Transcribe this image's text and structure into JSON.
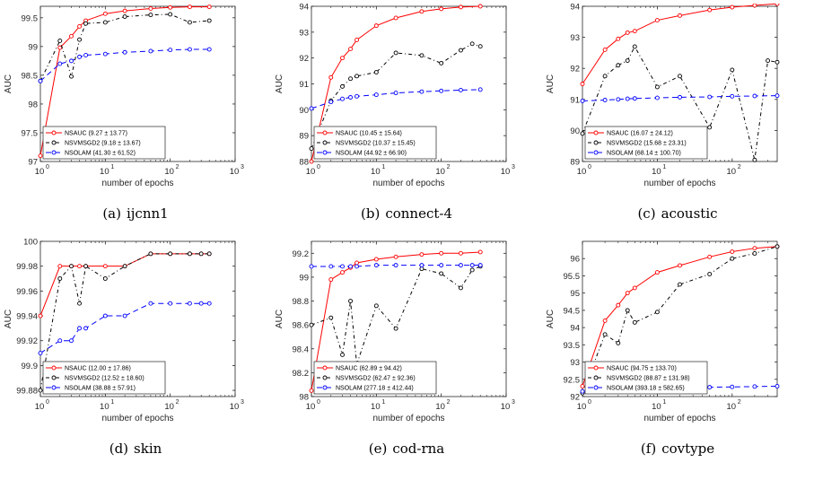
{
  "colors": {
    "nsauc": "#ff0000",
    "nsvmsgd2": "#000000",
    "nsolam": "#0000ff"
  },
  "chart_data": [
    {
      "type": "line",
      "caption_letter": "(a)",
      "caption": "ijcnn1",
      "xlabel": "number of epochs",
      "ylabel": "AUC",
      "xscale": "log",
      "xlim": [
        1,
        1000
      ],
      "ylim": [
        97,
        99.7
      ],
      "yticks": [
        97,
        97.5,
        98,
        98.5,
        99,
        99.5
      ],
      "ytick_labels": [
        "97",
        "97.5",
        "98",
        "98.5",
        "99",
        "99.5"
      ],
      "xticks": [
        1,
        10,
        100,
        1000
      ],
      "xtick_labels": [
        "10",
        "10",
        "10",
        "10"
      ],
      "xtick_exps": [
        "0",
        "1",
        "2",
        "3"
      ],
      "legend_position": "bottom-left",
      "series": [
        {
          "name": "NSAUC (9.27 ± 13.77)",
          "x": [
            1,
            2,
            3,
            4,
            5,
            10,
            20,
            50,
            100,
            200,
            400
          ],
          "y": [
            97.1,
            98.98,
            99.18,
            99.35,
            99.45,
            99.57,
            99.62,
            99.66,
            99.68,
            99.69,
            99.69
          ]
        },
        {
          "name": "NSVMSGD2 (9.18 ± 13.67)",
          "x": [
            1,
            2,
            3,
            4,
            5,
            10,
            20,
            50,
            100,
            200,
            400
          ],
          "y": [
            98.4,
            99.1,
            98.48,
            99.12,
            99.4,
            99.42,
            99.52,
            99.55,
            99.56,
            99.42,
            99.45
          ]
        },
        {
          "name": "NSOLAM (41.30 ± 61.52)",
          "x": [
            1,
            2,
            3,
            4,
            5,
            10,
            20,
            50,
            100,
            200,
            400
          ],
          "y": [
            98.4,
            98.7,
            98.75,
            98.82,
            98.85,
            98.87,
            98.9,
            98.92,
            98.94,
            98.95,
            98.95
          ]
        }
      ]
    },
    {
      "type": "line",
      "caption_letter": "(b)",
      "caption": "connect-4",
      "xlabel": "number of epochs",
      "ylabel": "AUC",
      "xscale": "log",
      "xlim": [
        1,
        1000
      ],
      "ylim": [
        88,
        94
      ],
      "yticks": [
        88,
        89,
        90,
        91,
        92,
        93,
        94
      ],
      "ytick_labels": [
        "88",
        "89",
        "90",
        "91",
        "92",
        "93",
        "94"
      ],
      "xticks": [
        1,
        10,
        100,
        1000
      ],
      "xtick_labels": [
        "10",
        "10",
        "10",
        "10"
      ],
      "xtick_exps": [
        "0",
        "1",
        "2",
        "3"
      ],
      "legend_position": "bottom-left",
      "series": [
        {
          "name": "NSAUC (10.45 ± 15.64)",
          "x": [
            1,
            2,
            3,
            4,
            5,
            10,
            20,
            50,
            100,
            200,
            400
          ],
          "y": [
            88.0,
            91.25,
            92.0,
            92.35,
            92.7,
            93.25,
            93.55,
            93.8,
            93.9,
            93.97,
            94.0
          ]
        },
        {
          "name": "NSVMSGD2 (10.37 ± 15.45)",
          "x": [
            1,
            2,
            3,
            4,
            5,
            10,
            20,
            50,
            100,
            200,
            300,
            400
          ],
          "y": [
            88.5,
            90.35,
            90.9,
            91.2,
            91.3,
            91.45,
            92.2,
            92.1,
            91.8,
            92.3,
            92.55,
            92.45
          ]
        },
        {
          "name": "NSOLAM (44.92 ± 66.90)",
          "x": [
            1,
            2,
            3,
            4,
            5,
            10,
            20,
            50,
            100,
            200,
            400
          ],
          "y": [
            90.05,
            90.3,
            90.42,
            90.48,
            90.52,
            90.58,
            90.65,
            90.7,
            90.73,
            90.76,
            90.78
          ]
        }
      ]
    },
    {
      "type": "line",
      "caption_letter": "(c)",
      "caption": "acoustic",
      "xlabel": "number of epochs",
      "ylabel": "AUC",
      "xscale": "log",
      "xlim": [
        1,
        400
      ],
      "ylim": [
        89,
        94
      ],
      "yticks": [
        89,
        90,
        91,
        92,
        93,
        94
      ],
      "ytick_labels": [
        "89",
        "90",
        "91",
        "92",
        "93",
        "94"
      ],
      "xticks": [
        1,
        10,
        100
      ],
      "xtick_labels": [
        "10",
        "10",
        "10"
      ],
      "xtick_exps": [
        "0",
        "1",
        "2"
      ],
      "legend_position": "bottom-left",
      "series": [
        {
          "name": "NSAUC (16.07 ± 24.12)",
          "x": [
            1,
            2,
            3,
            4,
            5,
            10,
            20,
            50,
            100,
            200,
            400
          ],
          "y": [
            91.5,
            92.6,
            92.95,
            93.15,
            93.2,
            93.55,
            93.7,
            93.88,
            93.97,
            94.03,
            94.08
          ]
        },
        {
          "name": "NSVMSGD2 (15.68 ± 23.31)",
          "x": [
            1,
            2,
            3,
            4,
            5,
            10,
            20,
            50,
            100,
            200,
            300,
            400
          ],
          "y": [
            89.9,
            91.75,
            92.1,
            92.25,
            92.7,
            91.4,
            91.75,
            90.1,
            91.95,
            89.05,
            92.25,
            92.2
          ]
        },
        {
          "name": "NSOLAM (68.14 ± 100.70)",
          "x": [
            1,
            2,
            3,
            4,
            5,
            10,
            20,
            50,
            100,
            200,
            400
          ],
          "y": [
            90.95,
            90.98,
            91.0,
            91.02,
            91.03,
            91.05,
            91.07,
            91.08,
            91.1,
            91.11,
            91.12
          ]
        }
      ]
    },
    {
      "type": "line",
      "caption_letter": "(d)",
      "caption": "skin",
      "xlabel": "number of epochs",
      "ylabel": "AUC",
      "xscale": "log",
      "xlim": [
        1,
        1000
      ],
      "ylim": [
        99.875,
        100
      ],
      "yticks": [
        99.88,
        99.9,
        99.92,
        99.94,
        99.96,
        99.98,
        100
      ],
      "ytick_labels": [
        "99.88",
        "99.9",
        "99.92",
        "99.94",
        "99.96",
        "99.98",
        "100"
      ],
      "xticks": [
        1,
        10,
        100,
        1000
      ],
      "xtick_labels": [
        "10",
        "10",
        "10",
        "10"
      ],
      "xtick_exps": [
        "0",
        "1",
        "2",
        "3"
      ],
      "legend_position": "bottom-left",
      "series": [
        {
          "name": "NSAUC (12.00 ± 17.86)",
          "x": [
            1,
            2,
            3,
            4,
            5,
            10,
            20,
            50,
            100,
            200,
            300,
            400
          ],
          "y": [
            99.94,
            99.98,
            99.98,
            99.98,
            99.98,
            99.98,
            99.98,
            99.99,
            99.99,
            99.99,
            99.99,
            99.99
          ]
        },
        {
          "name": "NSVMSGD2 (12.52 ± 18.60)",
          "x": [
            1,
            2,
            3,
            4,
            5,
            10,
            20,
            50,
            100,
            200,
            300,
            400
          ],
          "y": [
            99.88,
            99.97,
            99.98,
            99.95,
            99.98,
            99.97,
            99.98,
            99.99,
            99.99,
            99.99,
            99.99,
            99.99
          ]
        },
        {
          "name": "NSOLAM (38.88 ± 57.91)",
          "x": [
            1,
            2,
            3,
            4,
            5,
            10,
            20,
            50,
            100,
            200,
            300,
            400
          ],
          "y": [
            99.91,
            99.92,
            99.92,
            99.93,
            99.93,
            99.94,
            99.94,
            99.95,
            99.95,
            99.95,
            99.95,
            99.95
          ]
        }
      ]
    },
    {
      "type": "line",
      "caption_letter": "(e)",
      "caption": "cod-rna",
      "xlabel": "number of epochs",
      "ylabel": "AUC",
      "xscale": "log",
      "xlim": [
        1,
        1000
      ],
      "ylim": [
        98,
        99.3
      ],
      "yticks": [
        98,
        98.2,
        98.4,
        98.6,
        98.8,
        99,
        99.2
      ],
      "ytick_labels": [
        "98",
        "98.2",
        "98.4",
        "98.6",
        "98.8",
        "99",
        "99.2"
      ],
      "xticks": [
        1,
        10,
        100,
        1000
      ],
      "xtick_labels": [
        "10",
        "10",
        "10",
        "10"
      ],
      "xtick_exps": [
        "0",
        "1",
        "2",
        "3"
      ],
      "legend_position": "bottom-left",
      "series": [
        {
          "name": "NSAUC (62.89 ± 94.42)",
          "x": [
            1,
            2,
            3,
            4,
            5,
            10,
            20,
            50,
            100,
            200,
            400
          ],
          "y": [
            98.05,
            98.98,
            99.04,
            99.08,
            99.12,
            99.15,
            99.17,
            99.19,
            99.2,
            99.2,
            99.21
          ]
        },
        {
          "name": "NSVMSGD2 (62.47 ± 92.36)",
          "x": [
            1,
            2,
            3,
            4,
            5,
            10,
            20,
            50,
            100,
            200,
            300,
            400
          ],
          "y": [
            98.6,
            98.66,
            98.35,
            98.8,
            98.27,
            98.76,
            98.57,
            99.07,
            99.03,
            98.91,
            99.06,
            99.09
          ]
        },
        {
          "name": "NSOLAM (277.18 ± 412.44)",
          "x": [
            1,
            2,
            3,
            4,
            5,
            10,
            20,
            50,
            100,
            200,
            300,
            400
          ],
          "y": [
            99.09,
            99.09,
            99.09,
            99.09,
            99.09,
            99.1,
            99.1,
            99.1,
            99.1,
            99.1,
            99.1,
            99.1
          ]
        }
      ]
    },
    {
      "type": "line",
      "caption_letter": "(f)",
      "caption": "covtype",
      "xlabel": "number of epochs",
      "ylabel": "AUC",
      "xscale": "log",
      "xlim": [
        1,
        400
      ],
      "ylim": [
        92,
        96.5
      ],
      "yticks": [
        92,
        92.5,
        93,
        93.5,
        94,
        94.5,
        95,
        95.5,
        96
      ],
      "ytick_labels": [
        "92",
        "92.5",
        "93",
        "93.5",
        "94",
        "94.5",
        "95",
        "95.5",
        "96"
      ],
      "xticks": [
        1,
        10,
        100
      ],
      "xtick_labels": [
        "10",
        "10",
        "10"
      ],
      "xtick_exps": [
        "0",
        "1",
        "2"
      ],
      "legend_position": "bottom-left",
      "series": [
        {
          "name": "NSAUC (94.75 ± 133.70)",
          "x": [
            1,
            2,
            3,
            4,
            5,
            10,
            20,
            50,
            100,
            200,
            400
          ],
          "y": [
            92.3,
            94.2,
            94.65,
            95.0,
            95.15,
            95.6,
            95.8,
            96.05,
            96.2,
            96.3,
            96.35
          ]
        },
        {
          "name": "NSVMSGD2 (88.87 ± 131.98)",
          "x": [
            1,
            2,
            3,
            4,
            5,
            10,
            20,
            50,
            100,
            200,
            400
          ],
          "y": [
            92.1,
            93.8,
            93.55,
            94.5,
            94.15,
            94.45,
            95.25,
            95.55,
            96.0,
            96.15,
            96.35
          ]
        },
        {
          "name": "NSOLAM (393.18 ± 582.65)",
          "x": [
            1,
            2,
            3,
            4,
            5,
            10,
            20,
            50,
            100,
            200,
            400
          ],
          "y": [
            92.15,
            92.2,
            92.22,
            92.23,
            92.24,
            92.25,
            92.26,
            92.27,
            92.28,
            92.29,
            92.3
          ]
        }
      ]
    }
  ]
}
